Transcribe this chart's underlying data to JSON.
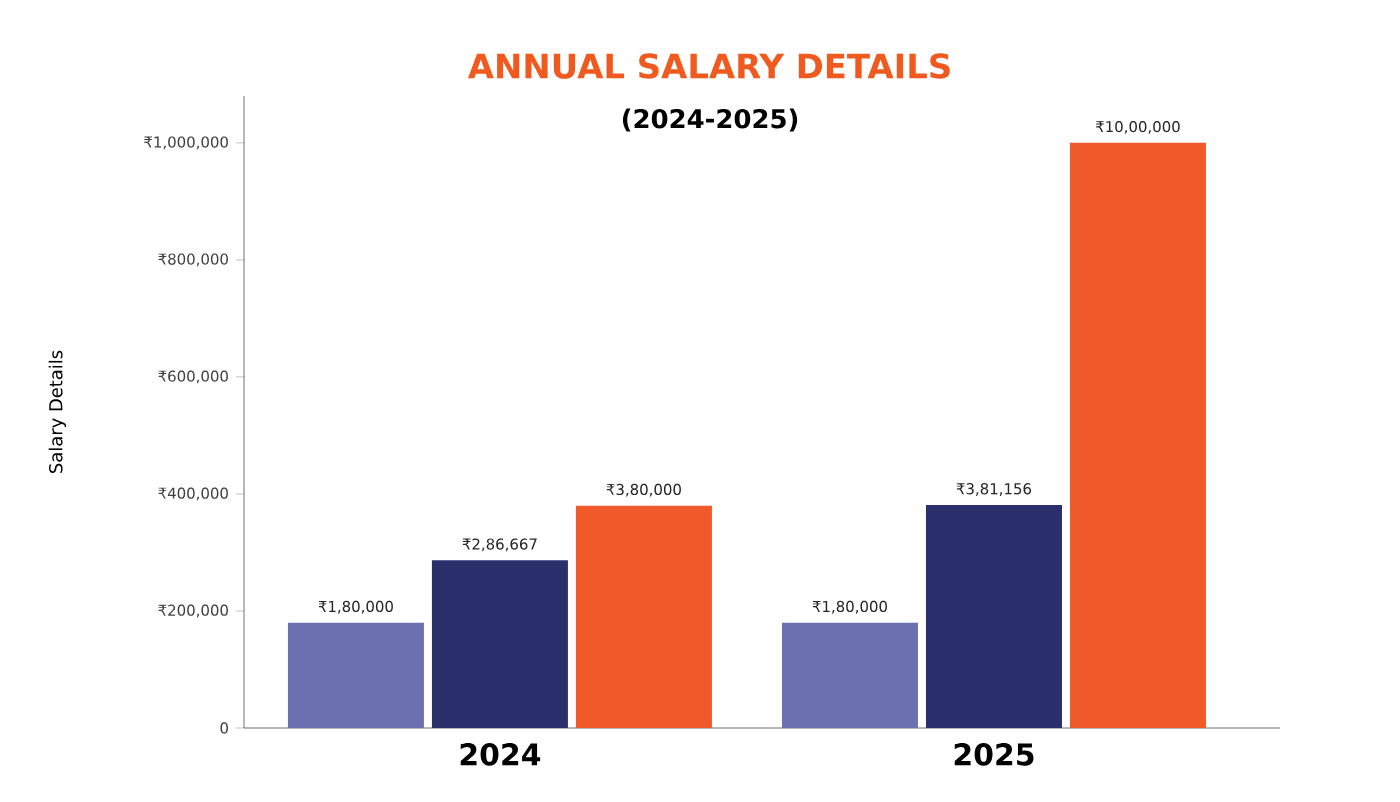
{
  "chart_data": {
    "type": "bar",
    "title": "ANNUAL SALARY DETAILS",
    "subtitle": "(2024-2025)",
    "ylabel": "Salary Details",
    "categories": [
      "2024",
      "2025"
    ],
    "series": [
      {
        "color": "#6b70b0",
        "values": [
          180000,
          180000
        ],
        "value_labels": [
          "₹1,80,000",
          "₹1,80,000"
        ]
      },
      {
        "color": "#2b2f6b",
        "values": [
          286667,
          381156
        ],
        "value_labels": [
          "₹2,86,667",
          "₹3,81,156"
        ]
      },
      {
        "color": "#f05a2a",
        "values": [
          380000,
          1000000
        ],
        "value_labels": [
          "₹3,80,000",
          "₹10,00,000"
        ]
      }
    ],
    "ylim": [
      0,
      1080000
    ],
    "yticks": [
      0,
      {
        "value": 200000,
        "label": "₹200,000"
      },
      {
        "value": 400000,
        "label": "₹400,000"
      },
      {
        "value": 600000,
        "label": "₹600,000"
      },
      {
        "value": 800000,
        "label": "₹800,000"
      },
      {
        "value": 1000000,
        "label": "₹1,000,000"
      }
    ],
    "grid": false
  }
}
